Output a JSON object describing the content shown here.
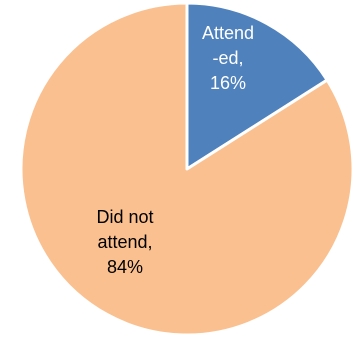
{
  "chart_data": {
    "type": "pie",
    "title": "",
    "start_angle_deg": 0,
    "direction": "clockwise",
    "legend": "none",
    "slices": [
      {
        "name": "Attended",
        "value": 16,
        "label_lines": [
          "Attend",
          "-ed,",
          "16%"
        ],
        "color": "#4f81bd",
        "label_color": "#ffffff"
      },
      {
        "name": "Did not attend",
        "value": 84,
        "label_lines": [
          "Did not",
          "attend,",
          "84%"
        ],
        "color": "#fac090",
        "label_color": "#000000"
      }
    ]
  }
}
